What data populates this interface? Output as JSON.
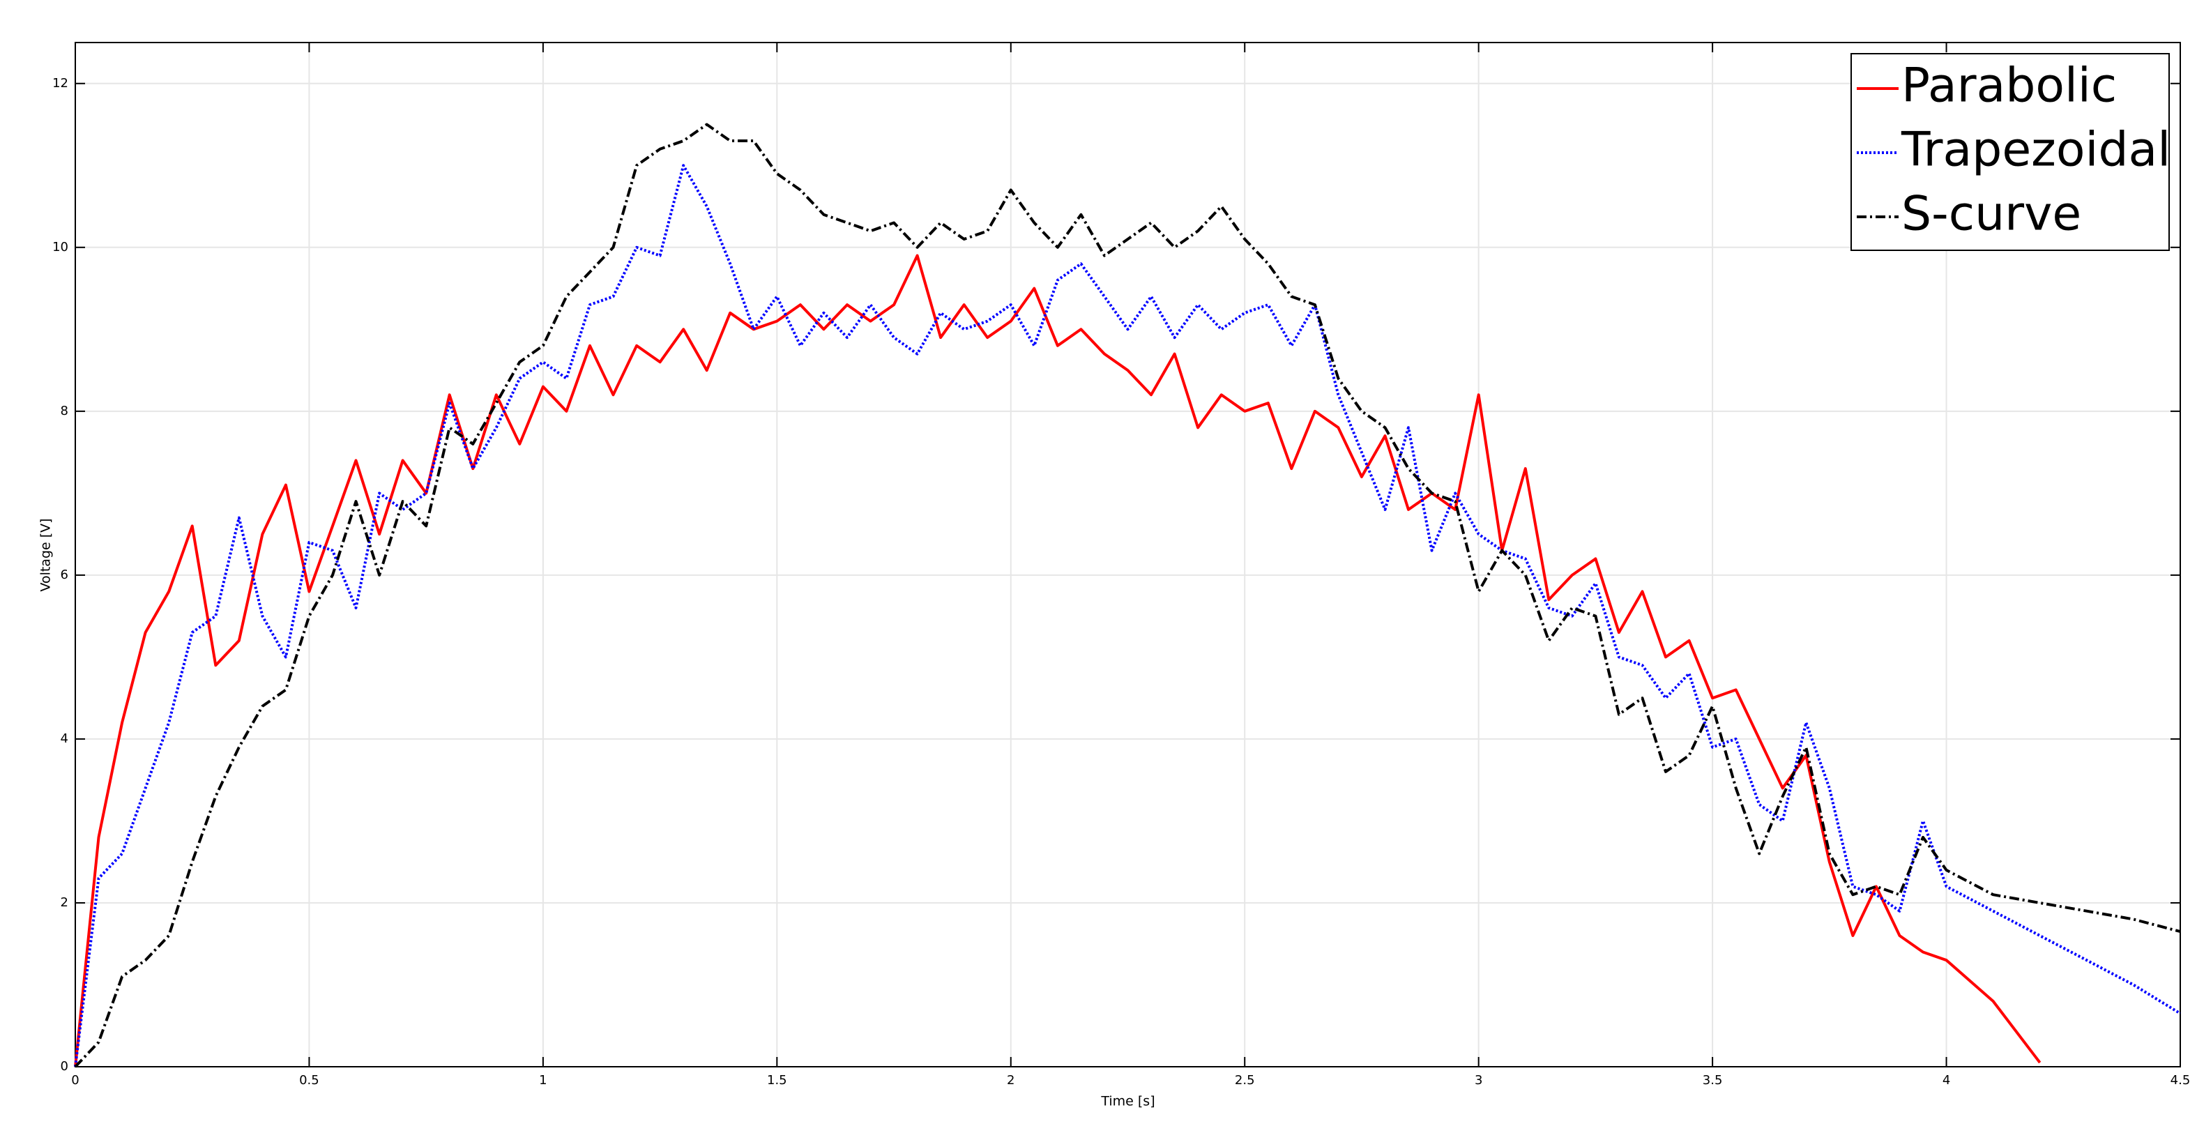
{
  "chart_data": {
    "type": "line",
    "xlabel": "Time [s]",
    "ylabel": "Voltage [V]",
    "xlim": [
      0,
      4.5
    ],
    "ylim": [
      0,
      12.5
    ],
    "xticks": [
      0,
      0.5,
      1,
      1.5,
      2,
      2.5,
      3,
      3.5,
      4,
      4.5
    ],
    "yticks": [
      0,
      2,
      4,
      6,
      8,
      10,
      12
    ],
    "grid": true,
    "legend": "upper-right",
    "x": [
      0,
      0.05,
      0.1,
      0.15,
      0.2,
      0.25,
      0.3,
      0.35,
      0.4,
      0.45,
      0.5,
      0.55,
      0.6,
      0.65,
      0.7,
      0.75,
      0.8,
      0.85,
      0.9,
      0.95,
      1,
      1.05,
      1.1,
      1.15,
      1.2,
      1.25,
      1.3,
      1.35,
      1.4,
      1.45,
      1.5,
      1.55,
      1.6,
      1.65,
      1.7,
      1.75,
      1.8,
      1.85,
      1.9,
      1.95,
      2,
      2.05,
      2.1,
      2.15,
      2.2,
      2.25,
      2.3,
      2.35,
      2.4,
      2.45,
      2.5,
      2.55,
      2.6,
      2.65,
      2.7,
      2.75,
      2.8,
      2.85,
      2.9,
      2.95,
      3,
      3.05,
      3.1,
      3.15,
      3.2,
      3.25,
      3.3,
      3.35,
      3.4,
      3.45,
      3.5,
      3.55,
      3.6,
      3.65,
      3.7,
      3.75,
      3.8,
      3.85,
      3.9,
      3.95,
      4,
      4.1,
      4.2,
      4.3,
      4.4,
      4.5
    ],
    "series": [
      {
        "name": "Parabolic",
        "color": "#ff0000",
        "dash": "solid",
        "values": [
          0,
          2.8,
          4.2,
          5.3,
          5.8,
          6.6,
          4.9,
          5.2,
          6.5,
          7.1,
          5.8,
          6.6,
          7.4,
          6.5,
          7.4,
          7.0,
          8.2,
          7.3,
          8.2,
          7.6,
          8.3,
          8.0,
          8.8,
          8.2,
          8.8,
          8.6,
          9.0,
          8.5,
          9.2,
          9.0,
          9.1,
          9.3,
          9.0,
          9.3,
          9.1,
          9.3,
          9.9,
          8.9,
          9.3,
          8.9,
          9.1,
          9.5,
          8.8,
          9.0,
          8.7,
          8.5,
          8.2,
          8.7,
          7.8,
          8.2,
          8.0,
          8.1,
          7.3,
          8.0,
          7.8,
          7.2,
          7.7,
          6.8,
          7.0,
          6.8,
          8.2,
          6.3,
          7.3,
          5.7,
          6.0,
          6.2,
          5.3,
          5.8,
          5.0,
          5.2,
          4.5,
          4.6,
          4.0,
          3.4,
          3.8,
          2.5,
          1.6,
          2.2,
          1.6,
          1.4,
          1.3,
          0.8,
          0.05,
          null,
          null,
          null
        ]
      },
      {
        "name": "Trapezoidal",
        "color": "#0000ff",
        "dash": "dotted",
        "values": [
          0,
          2.3,
          2.6,
          3.4,
          4.2,
          5.3,
          5.5,
          6.7,
          5.5,
          5.0,
          6.4,
          6.3,
          5.6,
          7.0,
          6.8,
          7.0,
          8.1,
          7.3,
          7.8,
          8.4,
          8.6,
          8.4,
          9.3,
          9.4,
          10.0,
          9.9,
          11.0,
          10.5,
          9.8,
          9.0,
          9.4,
          8.8,
          9.2,
          8.9,
          9.3,
          8.9,
          8.7,
          9.2,
          9.0,
          9.1,
          9.3,
          8.8,
          9.6,
          9.8,
          9.4,
          9.0,
          9.4,
          8.9,
          9.3,
          9.0,
          9.2,
          9.3,
          8.8,
          9.3,
          8.2,
          7.5,
          6.8,
          7.8,
          6.3,
          7.0,
          6.5,
          6.3,
          6.2,
          5.6,
          5.5,
          5.9,
          5.0,
          4.9,
          4.5,
          4.8,
          3.9,
          4.0,
          3.2,
          3.0,
          4.2,
          3.4,
          2.2,
          2.1,
          1.9,
          3.0,
          2.2,
          1.9,
          1.6,
          1.3,
          1.0,
          0.65
        ]
      },
      {
        "name": "S-curve",
        "color": "#000000",
        "dash": "dashdot",
        "values": [
          0,
          0.3,
          1.1,
          1.3,
          1.6,
          2.5,
          3.3,
          3.9,
          4.4,
          4.6,
          5.5,
          6.0,
          6.9,
          6.0,
          6.9,
          6.6,
          7.8,
          7.6,
          8.1,
          8.6,
          8.8,
          9.4,
          9.7,
          10.0,
          11.0,
          11.2,
          11.3,
          11.5,
          11.3,
          11.3,
          10.9,
          10.7,
          10.4,
          10.3,
          10.2,
          10.3,
          10.0,
          10.3,
          10.1,
          10.2,
          10.7,
          10.3,
          10.0,
          10.4,
          9.9,
          10.1,
          10.3,
          10.0,
          10.2,
          10.5,
          10.1,
          9.8,
          9.4,
          9.3,
          8.4,
          8.0,
          7.8,
          7.3,
          7.0,
          6.9,
          5.8,
          6.3,
          6.0,
          5.2,
          5.6,
          5.5,
          4.3,
          4.5,
          3.6,
          3.8,
          4.4,
          3.4,
          2.6,
          3.3,
          3.9,
          2.6,
          2.1,
          2.2,
          2.1,
          2.8,
          2.4,
          2.1,
          2.0,
          1.9,
          1.8,
          1.65
        ]
      }
    ]
  }
}
